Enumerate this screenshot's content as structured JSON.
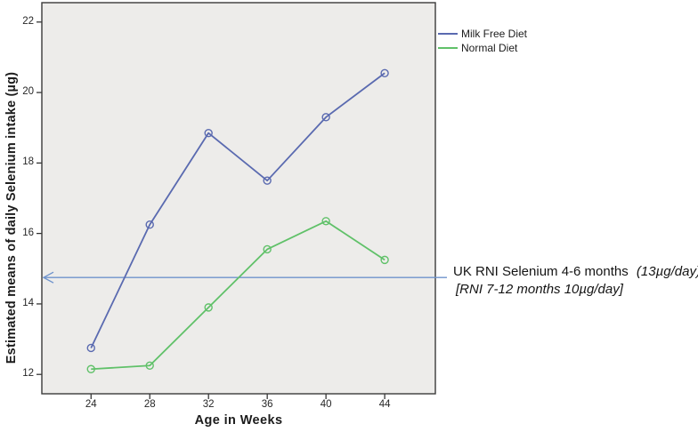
{
  "figure_background": "#ffffff",
  "plot_background": "#edecea",
  "plot_border_color": "#3a3a3a",
  "tick_color": "#262626",
  "chart_data": {
    "type": "line",
    "title": "",
    "xlabel": "Age in Weeks",
    "ylabel": "Estimated means of daily Selenium intake (µg)",
    "x": [
      24,
      28,
      32,
      36,
      40,
      44
    ],
    "series": [
      {
        "name": "Milk Free Diet",
        "color": "#5a6ab0",
        "marker": "open-circle",
        "values": [
          12.75,
          16.25,
          18.85,
          17.5,
          19.3,
          20.55
        ]
      },
      {
        "name": "Normal Diet",
        "color": "#60c169",
        "marker": "open-circle",
        "values": [
          12.15,
          12.25,
          13.9,
          15.55,
          16.35,
          15.25
        ]
      }
    ],
    "x_ticks": [
      "24",
      "28",
      "32",
      "36",
      "40",
      "44"
    ],
    "y_ticks": [
      "12",
      "14",
      "16",
      "18",
      "20",
      "22"
    ],
    "x_range": [
      20.65,
      47.45
    ],
    "y_range": [
      11.45,
      22.55
    ],
    "grid": false,
    "legend_position": "top-right-outside",
    "reference_line": {
      "y": 14.75,
      "color": "#6e93cc",
      "style": "horizontal-arrow-pointing-left"
    }
  },
  "annotation": {
    "line1_text": "UK RNI Selenium 4-6 months ",
    "line1_italic": "(13µg/day)",
    "line2_text": "[RNI 7-12 months 10µg/day]"
  }
}
